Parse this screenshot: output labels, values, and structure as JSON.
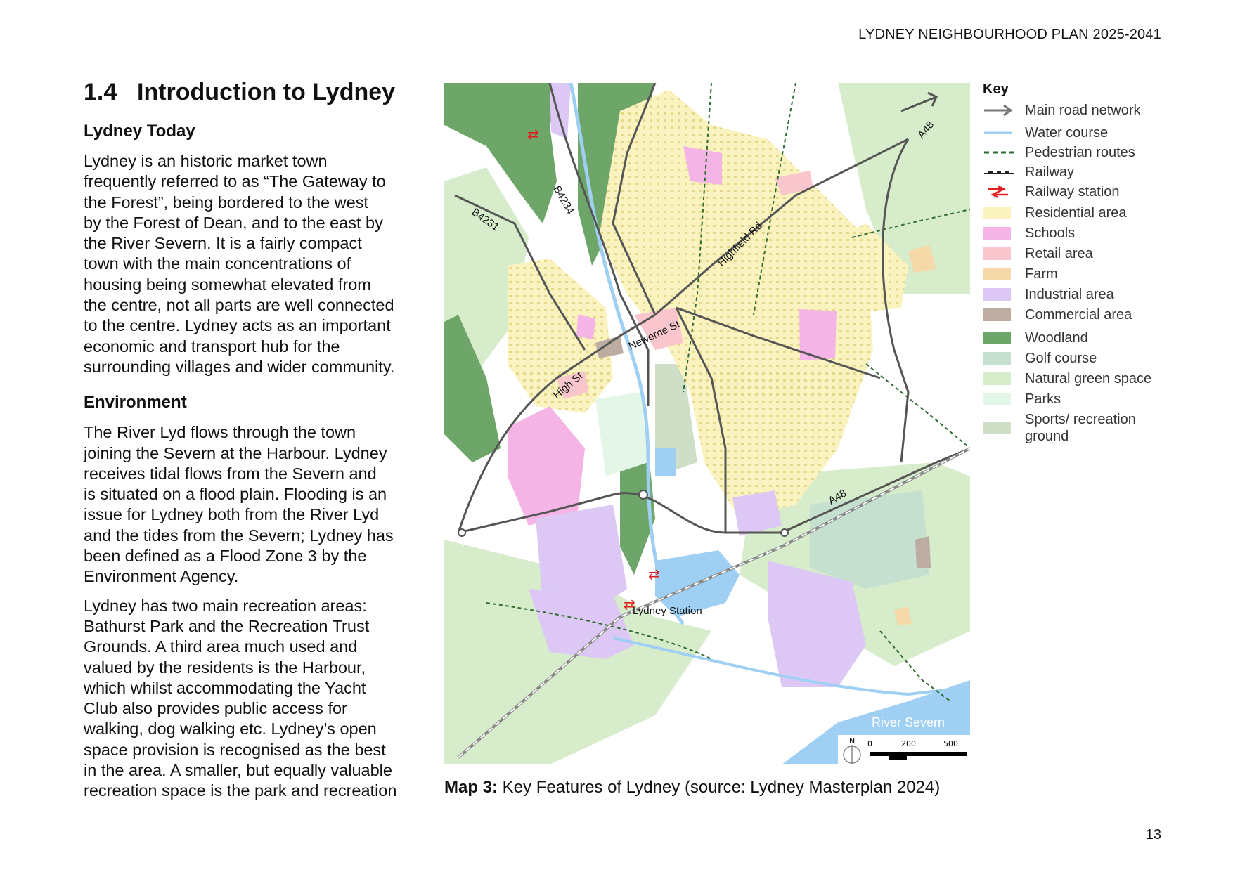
{
  "header": {
    "title": "LYDNEY NEIGHBOURHOOD PLAN 2025-2041"
  },
  "page_number": "13",
  "section": {
    "number": "1.4",
    "title": "Introduction to Lydney",
    "subsections": [
      {
        "heading": "Lydney Today",
        "paragraphs": [
          "Lydney is an historic market town\nfrequently referred to as “The Gateway to\nthe Forest”, being bordered to the west\nby the Forest of Dean, and to the east by\nthe River Severn. It is a fairly compact\ntown with the main concentrations of\nhousing being somewhat elevated from\nthe centre, not all parts are well connected\nto the centre. Lydney acts as an important\neconomic and transport hub for the\nsurrounding villages and wider community."
        ]
      },
      {
        "heading": "Environment",
        "paragraphs": [
          "The River Lyd flows through the town\njoining the Severn at the Harbour. Lydney\nreceives tidal flows from the Severn and\nis situated on a flood plain. Flooding is an\nissue for Lydney both from the River Lyd\nand the tides from the Severn; Lydney has\nbeen defined as a Flood Zone 3 by the\nEnvironment Agency.",
          "Lydney has two main recreation areas:\nBathurst Park and the Recreation Trust\nGrounds. A third area much used and\nvalued by the residents is the Harbour,\nwhich whilst accommodating the Yacht\nClub also provides public access for\nwalking, dog walking etc. Lydney’s open\nspace provision is recognised as the best\nin the area. A smaller, but equally valuable\nrecreation space is the park and recreation"
        ]
      }
    ]
  },
  "map": {
    "labels": {
      "b4234": "B4234",
      "b4231": "B4231",
      "highfield": "Highfield Rd",
      "newerne": "Newerne St",
      "high_st": "High St",
      "a48_top": "A48",
      "a48_mid": "A48",
      "station": "Lydney Station",
      "river": "River Severn"
    },
    "scale": {
      "north": "N",
      "ticks": [
        "0",
        "200",
        "500"
      ]
    },
    "colors": {
      "residential": "#faf3c0",
      "schools": "#f4b4e6",
      "retail": "#f8c6cc",
      "farm": "#f5d9a8",
      "industrial": "#ddc8f5",
      "commercial": "#bcaca2",
      "woodland": "#6ea66a",
      "golf": "#c6e0d0",
      "natural": "#d6eccb",
      "parks": "#e4f6e8",
      "sports": "#cfdec7",
      "water": "#9fd0f4",
      "road": "#555555",
      "path": "#2e6b2e"
    }
  },
  "caption": {
    "bold": "Map 3:",
    "text": " Key Features of Lydney (source: Lydney Masterplan 2024)"
  },
  "key": {
    "title": "Key",
    "items": [
      {
        "label": "Main road network",
        "icon": "arrow-icon"
      },
      {
        "label": "Water course",
        "icon": "water-line-icon",
        "color": "#9fd0f4"
      },
      {
        "label": "Pedestrian routes",
        "icon": "dashed-line-icon",
        "color": "#2e6b2e"
      },
      {
        "label": "Railway",
        "icon": "railway-icon"
      },
      {
        "label": "Railway station",
        "icon": "rail-station-icon",
        "color": "#e02020"
      },
      {
        "label": "Residential area",
        "color": "#faf3c0"
      },
      {
        "label": "Schools",
        "color": "#f4b4e6"
      },
      {
        "label": "Retail area",
        "color": "#f8c6cc"
      },
      {
        "label": "Farm",
        "color": "#f5d9a8"
      },
      {
        "label": "Industrial area",
        "color": "#ddc8f5"
      },
      {
        "label": "Commercial area",
        "color": "#bcaca2"
      },
      {
        "label": "Woodland",
        "color": "#6ea66a"
      },
      {
        "label": "Golf course",
        "color": "#c6e0d0"
      },
      {
        "label": "Natural green space",
        "color": "#d6eccb"
      },
      {
        "label": "Parks",
        "color": "#e4f6e8"
      },
      {
        "label": "Sports/ recreation\nground",
        "color": "#cfdec7"
      }
    ]
  }
}
